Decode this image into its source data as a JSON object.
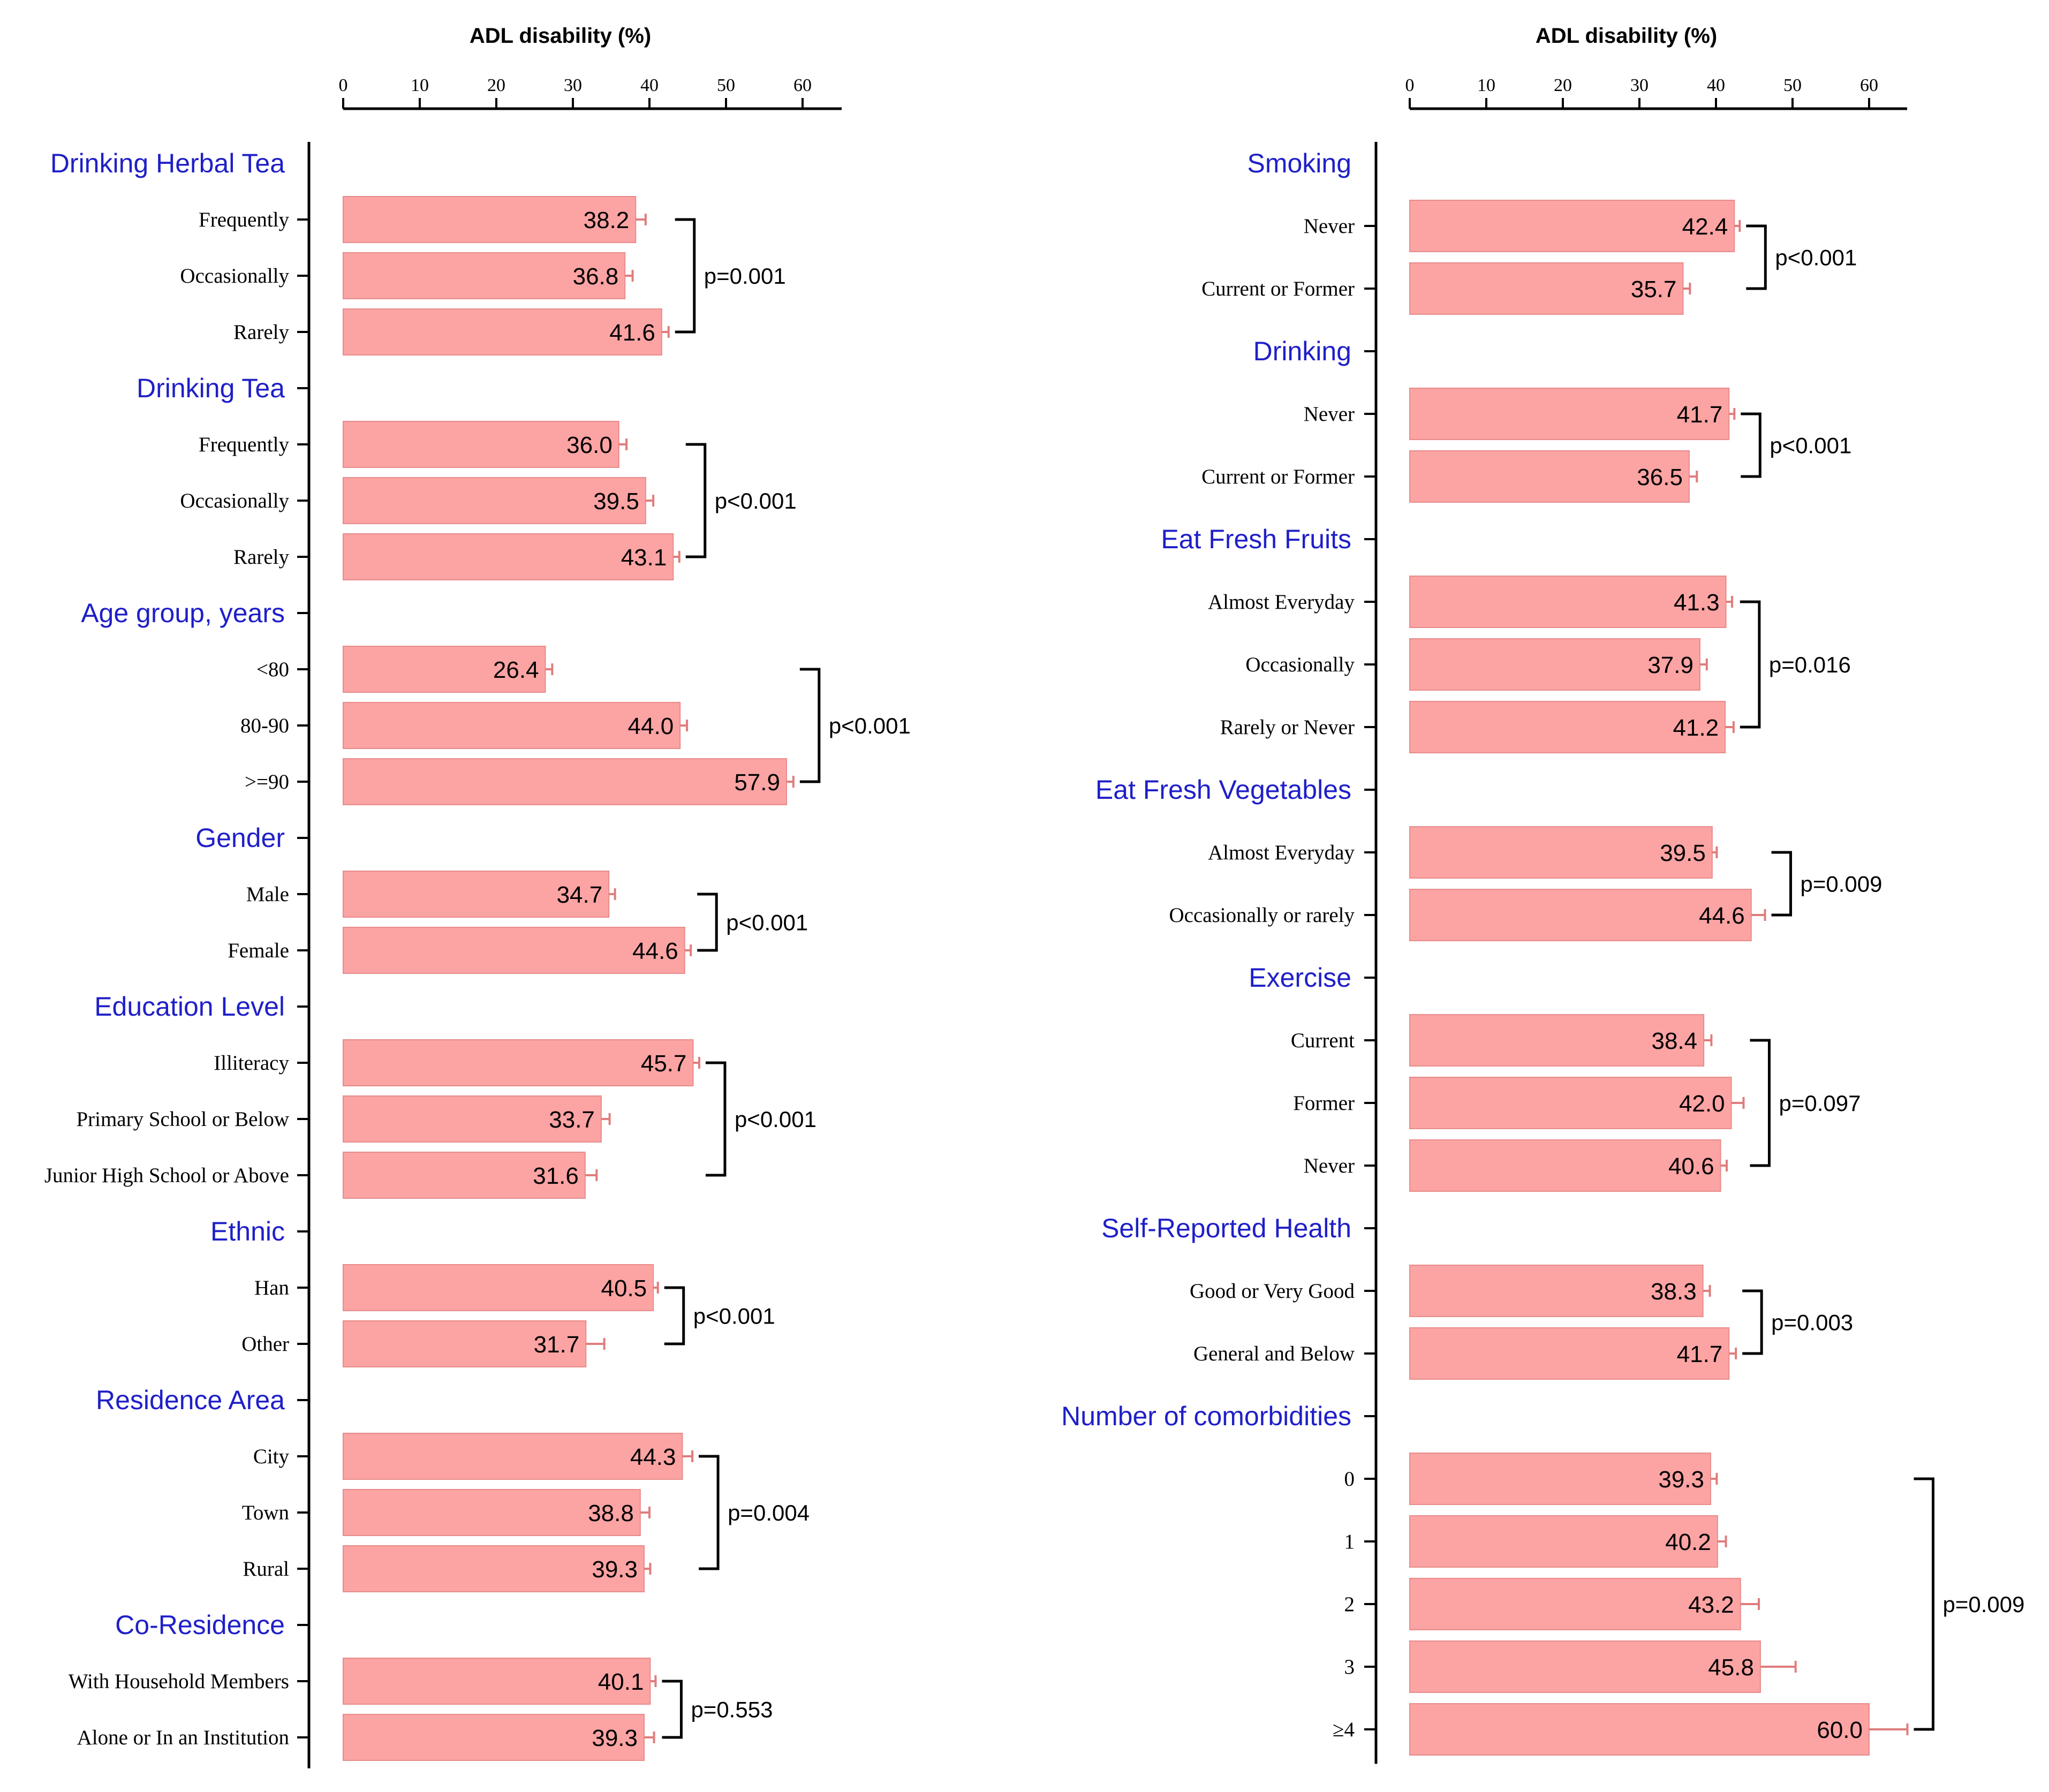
{
  "colors": {
    "bar_fill": "#fca3a3",
    "bar_stroke": "#e88c8c",
    "error_bar": "#e07c7c",
    "group_label": "#1f1fc8",
    "axis": "#000000"
  },
  "chart_data": [
    {
      "type": "bar",
      "orientation": "horizontal",
      "xlabel": "ADL disability (%)",
      "xlim": [
        0,
        65
      ],
      "xticks": [
        0,
        10,
        20,
        30,
        40,
        50,
        60
      ],
      "groups": [
        {
          "name": "Drinking Herbal Tea",
          "p_value": "p=0.001",
          "categories": [
            {
              "label": "Frequently",
              "value": 38.2,
              "value_label": "38.2",
              "err": 1.3
            },
            {
              "label": "Occasionally",
              "value": 36.8,
              "value_label": "36.8",
              "err": 1.0
            },
            {
              "label": "Rarely",
              "value": 41.6,
              "value_label": "41.6",
              "err": 0.9
            }
          ]
        },
        {
          "name": "Drinking Tea",
          "p_value": "p<0.001",
          "categories": [
            {
              "label": "Frequently",
              "value": 36.0,
              "value_label": "36.0",
              "err": 1.0
            },
            {
              "label": "Occasionally",
              "value": 39.5,
              "value_label": "39.5",
              "err": 1.0
            },
            {
              "label": "Rarely",
              "value": 43.1,
              "value_label": "43.1",
              "err": 0.8
            }
          ]
        },
        {
          "name": "Age group, years",
          "p_value": "p<0.001",
          "categories": [
            {
              "label": "<80",
              "value": 26.4,
              "value_label": "26.4",
              "err": 0.9
            },
            {
              "label": "80-90",
              "value": 44.0,
              "value_label": "44.0",
              "err": 0.9
            },
            {
              "label": ">=90",
              "value": 57.9,
              "value_label": "57.9",
              "err": 0.9
            }
          ]
        },
        {
          "name": "Gender",
          "p_value": "p<0.001",
          "categories": [
            {
              "label": "Male",
              "value": 34.7,
              "value_label": "34.7",
              "err": 0.8
            },
            {
              "label": "Female",
              "value": 44.6,
              "value_label": "44.6",
              "err": 0.8
            }
          ]
        },
        {
          "name": "Education Level",
          "p_value": "p<0.001",
          "categories": [
            {
              "label": "Illiteracy",
              "value": 45.7,
              "value_label": "45.7",
              "err": 0.8
            },
            {
              "label": "Primary School or Below",
              "value": 33.7,
              "value_label": "33.7",
              "err": 1.1
            },
            {
              "label": "Junior High School or Above",
              "value": 31.6,
              "value_label": "31.6",
              "err": 1.5
            }
          ]
        },
        {
          "name": "Ethnic",
          "p_value": "p<0.001",
          "categories": [
            {
              "label": "Han",
              "value": 40.5,
              "value_label": "40.5",
              "err": 0.6
            },
            {
              "label": "Other",
              "value": 31.7,
              "value_label": "31.7",
              "err": 2.4
            }
          ]
        },
        {
          "name": "Residence Area",
          "p_value": "p=0.004",
          "categories": [
            {
              "label": "City",
              "value": 44.3,
              "value_label": "44.3",
              "err": 1.3
            },
            {
              "label": "Town",
              "value": 38.8,
              "value_label": "38.8",
              "err": 1.2
            },
            {
              "label": "Rural",
              "value": 39.3,
              "value_label": "39.3",
              "err": 0.8
            }
          ]
        },
        {
          "name": "Co-Residence",
          "p_value": "p=0.553",
          "categories": [
            {
              "label": "With Household Members",
              "value": 40.1,
              "value_label": "40.1",
              "err": 0.7
            },
            {
              "label": "Alone or In an Institution",
              "value": 39.3,
              "value_label": "39.3",
              "err": 1.3
            }
          ]
        }
      ]
    },
    {
      "type": "bar",
      "orientation": "horizontal",
      "xlabel": "ADL disability (%)",
      "xlim": [
        0,
        65
      ],
      "xticks": [
        0,
        10,
        20,
        30,
        40,
        50,
        60
      ],
      "groups": [
        {
          "name": "Smoking",
          "p_value": "p<0.001",
          "categories": [
            {
              "label": "Never",
              "value": 42.4,
              "value_label": "42.4",
              "err": 0.7
            },
            {
              "label": "Current or Former",
              "value": 35.7,
              "value_label": "35.7",
              "err": 0.9
            }
          ]
        },
        {
          "name": "Drinking",
          "p_value": "p<0.001",
          "categories": [
            {
              "label": "Never",
              "value": 41.7,
              "value_label": "41.7",
              "err": 0.7
            },
            {
              "label": "Current or Former",
              "value": 36.5,
              "value_label": "36.5",
              "err": 1.0
            }
          ]
        },
        {
          "name": "Eat Fresh Fruits",
          "p_value": "p=0.016",
          "categories": [
            {
              "label": "Almost Everyday",
              "value": 41.3,
              "value_label": "41.3",
              "err": 0.8
            },
            {
              "label": "Occasionally",
              "value": 37.9,
              "value_label": "37.9",
              "err": 0.9
            },
            {
              "label": "Rarely or Never",
              "value": 41.2,
              "value_label": "41.2",
              "err": 1.1
            }
          ]
        },
        {
          "name": "Eat Fresh Vegetables",
          "p_value": "p=0.009",
          "categories": [
            {
              "label": "Almost Everyday",
              "value": 39.5,
              "value_label": "39.5",
              "err": 0.6
            },
            {
              "label": "Occasionally or rarely",
              "value": 44.6,
              "value_label": "44.6",
              "err": 1.8
            }
          ]
        },
        {
          "name": "Exercise",
          "p_value": "p=0.097",
          "categories": [
            {
              "label": "Current",
              "value": 38.4,
              "value_label": "38.4",
              "err": 1.0
            },
            {
              "label": "Former",
              "value": 42.0,
              "value_label": "42.0",
              "err": 1.6
            },
            {
              "label": "Never",
              "value": 40.6,
              "value_label": "40.6",
              "err": 0.8
            }
          ]
        },
        {
          "name": "Self-Reported Health",
          "p_value": "p=0.003",
          "categories": [
            {
              "label": "Good or Very Good",
              "value": 38.3,
              "value_label": "38.3",
              "err": 0.9
            },
            {
              "label": "General and Below",
              "value": 41.7,
              "value_label": "41.7",
              "err": 0.9
            }
          ]
        },
        {
          "name": "Number of comorbidities",
          "p_value": "p=0.009",
          "categories": [
            {
              "label": "0",
              "value": 39.3,
              "value_label": "39.3",
              "err": 0.8
            },
            {
              "label": "1",
              "value": 40.2,
              "value_label": "40.2",
              "err": 1.1
            },
            {
              "label": "2",
              "value": 43.2,
              "value_label": "43.2",
              "err": 2.4
            },
            {
              "label": "3",
              "value": 45.8,
              "value_label": "45.8",
              "err": 4.6
            },
            {
              "label": "≥4",
              "value": 60.0,
              "value_label": "60.0",
              "err": 5.0
            }
          ]
        }
      ]
    }
  ]
}
